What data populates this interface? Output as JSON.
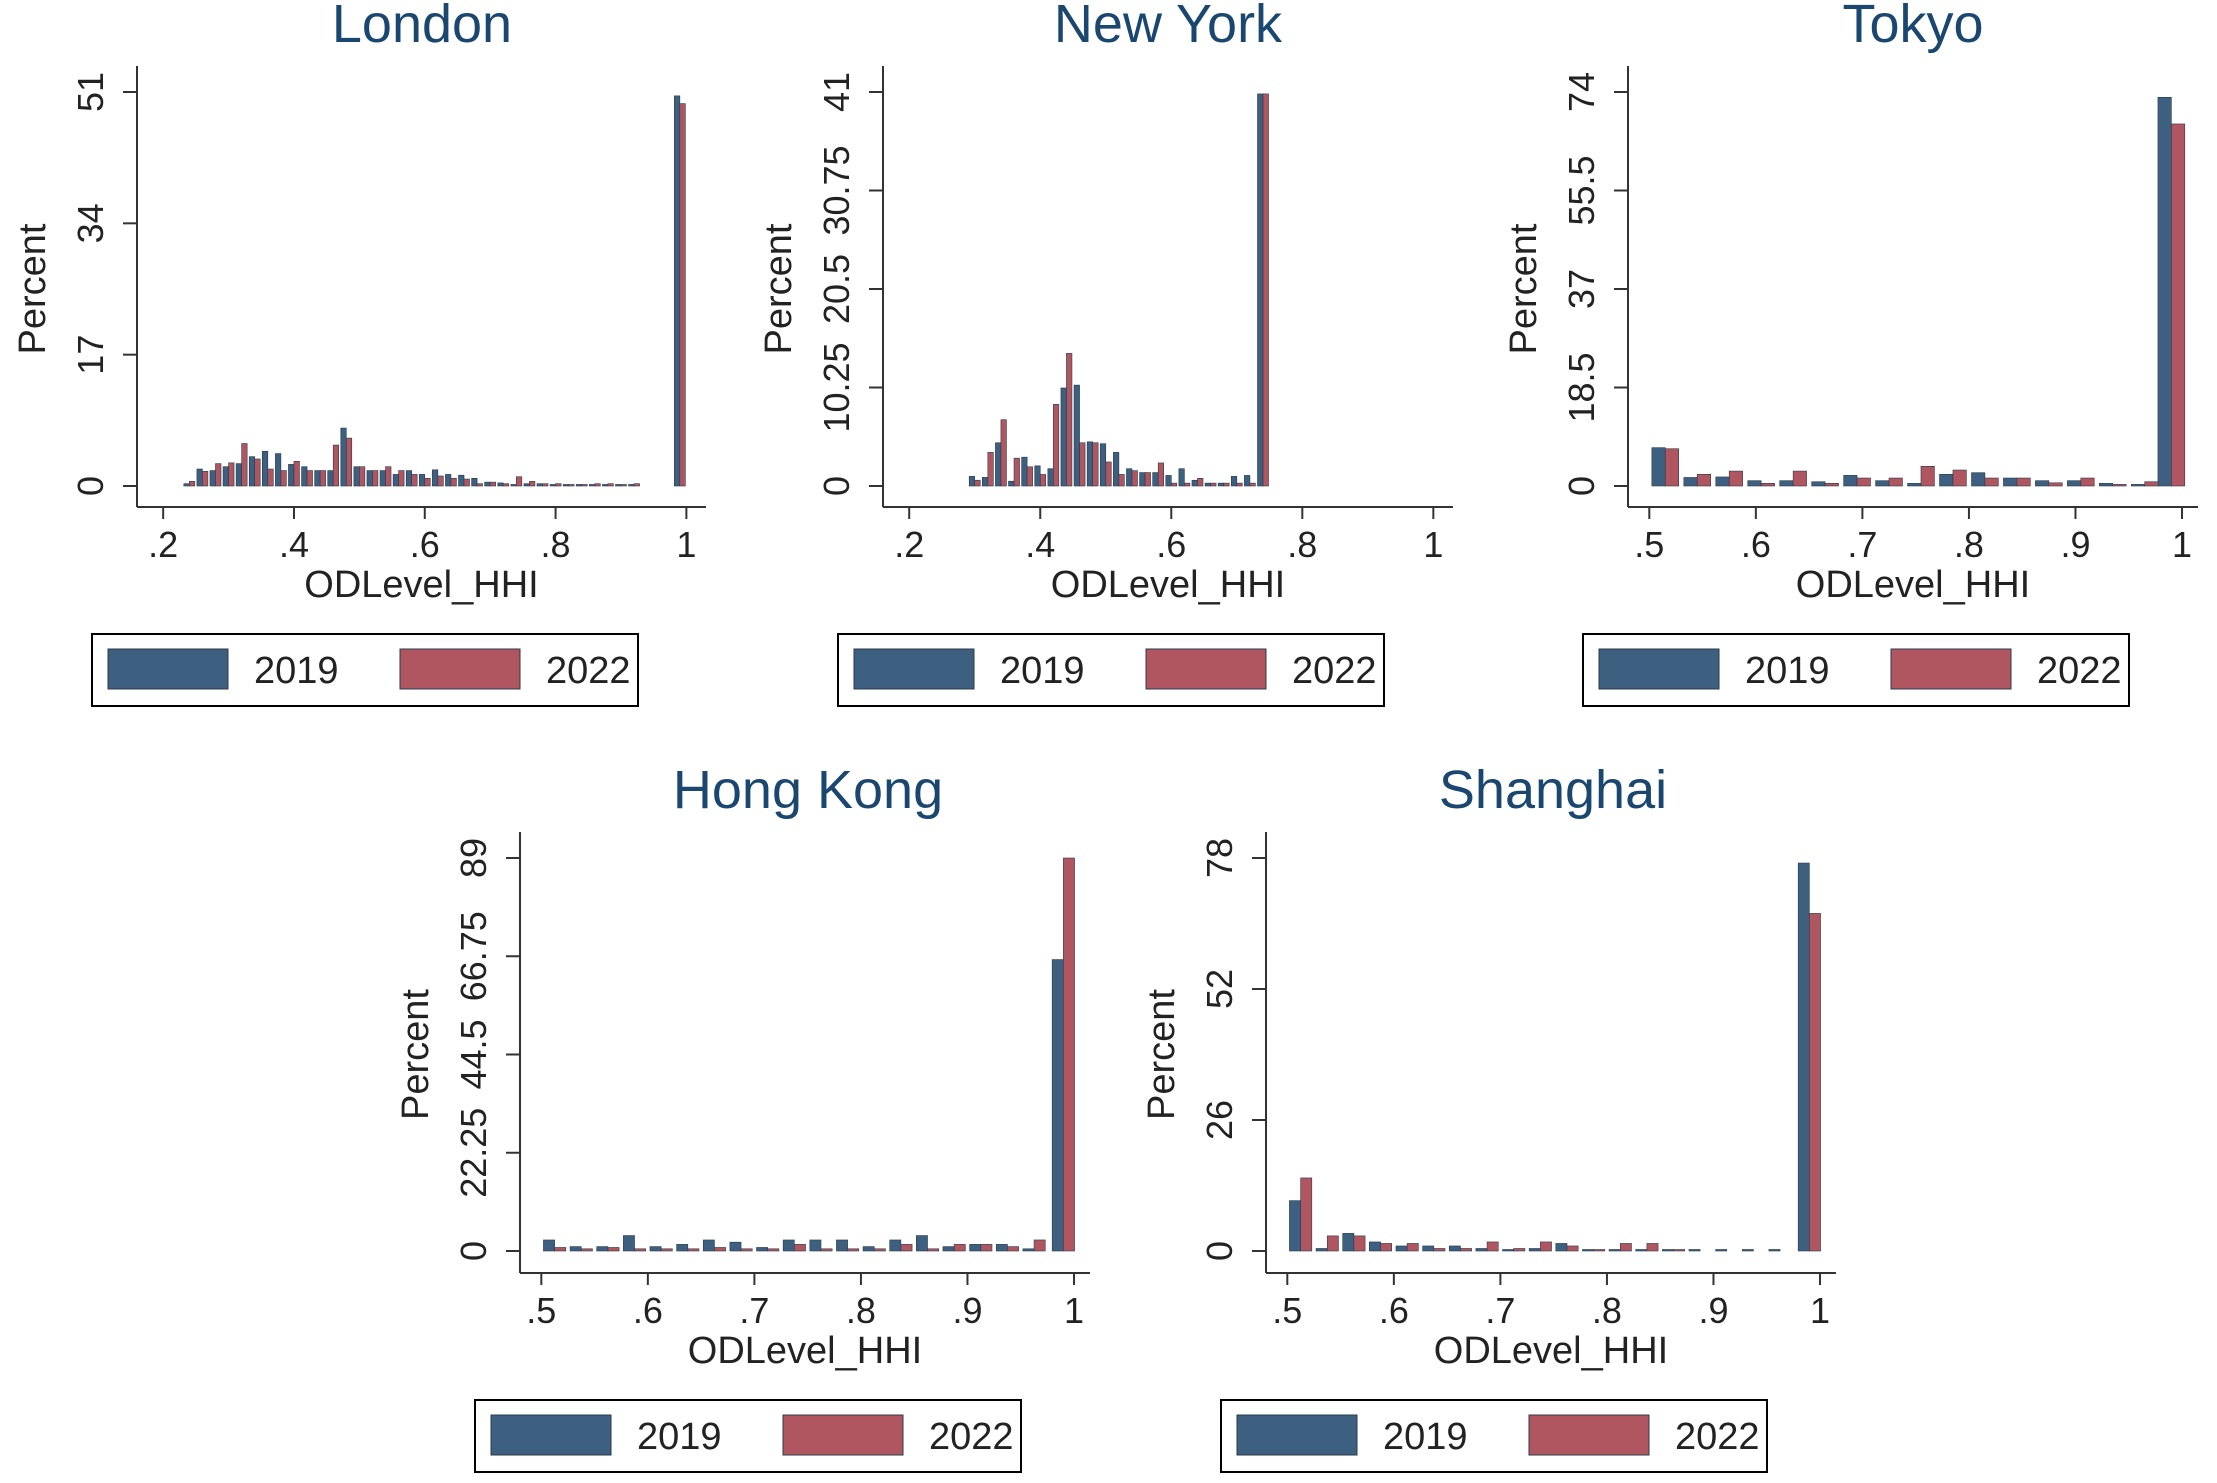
{
  "colors": {
    "s2019": "#3d5f80",
    "s2022": "#b05660",
    "title": "#1a476f",
    "axis": "#333333"
  },
  "chart_data": [
    {
      "type": "bar",
      "title": "London",
      "xlabel": "ODLevel_HHI",
      "ylabel": "Percent",
      "xticks": [
        0.2,
        0.4,
        0.6,
        0.8,
        1
      ],
      "xtick_labels": [
        ".2",
        ".4",
        ".6",
        ".8",
        "1"
      ],
      "xlim": [
        0.16,
        1.03
      ],
      "yticks": [
        0,
        17,
        34,
        51
      ],
      "ytick_labels": [
        "0",
        "17",
        "34",
        "51"
      ],
      "ylim": [
        0,
        51
      ],
      "legend": [
        "2019",
        "2022"
      ],
      "legend_position": "bottom",
      "bin_width": 0.02,
      "series": [
        {
          "name": "2019",
          "x": [
            0.24,
            0.26,
            0.28,
            0.3,
            0.32,
            0.34,
            0.36,
            0.38,
            0.4,
            0.42,
            0.44,
            0.46,
            0.48,
            0.5,
            0.52,
            0.54,
            0.56,
            0.58,
            0.6,
            0.62,
            0.64,
            0.66,
            0.68,
            0.7,
            0.72,
            0.74,
            0.76,
            0.78,
            0.8,
            0.82,
            0.84,
            0.86,
            0.88,
            0.9,
            0.92,
            0.99
          ],
          "values": [
            0.3,
            2.2,
            2.0,
            2.5,
            2.9,
            3.8,
            4.5,
            4.2,
            2.8,
            2.5,
            2.0,
            2.0,
            7.5,
            2.5,
            2.0,
            2.0,
            1.5,
            2.0,
            1.5,
            2.1,
            1.5,
            1.4,
            1.0,
            0.5,
            0.4,
            0.2,
            0.3,
            0.3,
            0.2,
            0.2,
            0.2,
            0.2,
            0.2,
            0.2,
            0.2,
            50.5
          ]
        },
        {
          "name": "2022",
          "x": [
            0.24,
            0.26,
            0.28,
            0.3,
            0.32,
            0.34,
            0.36,
            0.38,
            0.4,
            0.42,
            0.44,
            0.46,
            0.48,
            0.5,
            0.52,
            0.54,
            0.56,
            0.58,
            0.6,
            0.62,
            0.64,
            0.66,
            0.68,
            0.7,
            0.72,
            0.74,
            0.76,
            0.78,
            0.8,
            0.82,
            0.84,
            0.86,
            0.88,
            0.9,
            0.92,
            0.99
          ],
          "values": [
            0.6,
            1.9,
            2.9,
            3.0,
            5.5,
            3.5,
            2.2,
            2.0,
            3.2,
            2.0,
            2.0,
            5.3,
            6.2,
            2.5,
            2.0,
            2.5,
            2.0,
            1.5,
            1.0,
            1.3,
            1.0,
            0.9,
            0.3,
            0.5,
            0.3,
            1.2,
            0.6,
            0.3,
            0.3,
            0.2,
            0.2,
            0.3,
            0.3,
            0.2,
            0.3,
            49.5
          ]
        }
      ]
    },
    {
      "type": "bar",
      "title": "New York",
      "xlabel": "ODLevel_HHI",
      "ylabel": "Percent",
      "xticks": [
        0.2,
        0.4,
        0.6,
        0.8,
        1
      ],
      "xtick_labels": [
        ".2",
        ".4",
        ".6",
        ".8",
        "1"
      ],
      "xlim": [
        0.16,
        1.03
      ],
      "yticks": [
        0,
        10.25,
        20.5,
        30.75,
        41
      ],
      "ytick_labels": [
        "0",
        "10.25",
        "20.5",
        "30.75",
        "41"
      ],
      "ylim": [
        0,
        41
      ],
      "legend": [
        "2019",
        "2022"
      ],
      "legend_position": "bottom",
      "bin_width": 0.02,
      "series": [
        {
          "name": "2019",
          "x": [
            0.3,
            0.32,
            0.34,
            0.36,
            0.38,
            0.4,
            0.42,
            0.44,
            0.46,
            0.48,
            0.5,
            0.52,
            0.54,
            0.56,
            0.58,
            0.6,
            0.62,
            0.64,
            0.66,
            0.68,
            0.7,
            0.72,
            0.74,
            0.76,
            0.78,
            0.8,
            0.82,
            0.84,
            0.86,
            0.88,
            0.9,
            0.92,
            0.99
          ],
          "values": [
            1.0,
            0.9,
            4.5,
            0.5,
            3.0,
            2.1,
            1.8,
            10.2,
            10.5,
            4.6,
            4.4,
            3.5,
            1.8,
            1.4,
            1.4,
            1.1,
            1.8,
            0.6,
            0.3,
            0.3,
            1.0,
            1.1,
            40.8,
            0,
            0,
            0,
            0,
            0,
            0,
            0,
            0,
            0,
            0
          ]
        },
        {
          "name": "2022",
          "x": [
            0.3,
            0.32,
            0.34,
            0.36,
            0.38,
            0.4,
            0.42,
            0.44,
            0.46,
            0.48,
            0.5,
            0.52,
            0.54,
            0.56,
            0.58,
            0.6,
            0.62,
            0.64,
            0.66,
            0.68,
            0.7,
            0.72,
            0.74,
            0.76,
            0.78,
            0.8,
            0.82,
            0.84,
            0.86,
            0.88,
            0.9,
            0.92,
            0.99
          ],
          "values": [
            0.6,
            3.5,
            6.9,
            2.9,
            2.0,
            1.2,
            8.5,
            13.8,
            4.5,
            4.5,
            2.5,
            1.2,
            1.6,
            1.4,
            2.4,
            0.3,
            0.3,
            0.8,
            0.3,
            0.3,
            0.3,
            0.3,
            40.8,
            0,
            0,
            0,
            0,
            0,
            0,
            0,
            0,
            0,
            0
          ]
        }
      ]
    },
    {
      "type": "bar",
      "title": "Tokyo",
      "xlabel": "ODLevel_HHI",
      "ylabel": "Percent",
      "xticks": [
        0.5,
        0.6,
        0.7,
        0.8,
        0.9,
        1
      ],
      "xtick_labels": [
        ".5",
        ".6",
        ".7",
        ".8",
        ".9",
        "1"
      ],
      "xlim": [
        0.48,
        1.015
      ],
      "yticks": [
        0,
        18.5,
        37,
        55.5,
        74
      ],
      "ytick_labels": [
        "0",
        "18.5",
        "37",
        "55.5",
        "74"
      ],
      "ylim": [
        0,
        74
      ],
      "legend": [
        "2019",
        "2022"
      ],
      "legend_position": "bottom",
      "bin_width": 0.03,
      "series": [
        {
          "name": "2019",
          "x": [
            0.515,
            0.545,
            0.575,
            0.605,
            0.635,
            0.665,
            0.695,
            0.725,
            0.755,
            0.785,
            0.815,
            0.845,
            0.875,
            0.905,
            0.935,
            0.965,
            0.99
          ],
          "values": [
            7.2,
            1.6,
            1.7,
            1.0,
            1.0,
            0.8,
            2.0,
            1.0,
            0.5,
            2.2,
            2.5,
            1.5,
            1.0,
            1.0,
            0.5,
            0.3,
            73.0
          ]
        },
        {
          "name": "2022",
          "x": [
            0.515,
            0.545,
            0.575,
            0.605,
            0.635,
            0.665,
            0.695,
            0.725,
            0.755,
            0.785,
            0.815,
            0.845,
            0.875,
            0.905,
            0.935,
            0.965,
            0.99
          ],
          "values": [
            7.0,
            2.2,
            2.8,
            0.5,
            2.8,
            0.5,
            1.5,
            1.5,
            3.7,
            3.0,
            1.5,
            1.5,
            0.6,
            1.5,
            0.3,
            0.8,
            68.0
          ]
        }
      ]
    },
    {
      "type": "bar",
      "title": "Hong Kong",
      "xlabel": "ODLevel_HHI",
      "ylabel": "Percent",
      "xticks": [
        0.5,
        0.6,
        0.7,
        0.8,
        0.9,
        1
      ],
      "xtick_labels": [
        ".5",
        ".6",
        ".7",
        ".8",
        ".9",
        "1"
      ],
      "xlim": [
        0.48,
        1.015
      ],
      "yticks": [
        0,
        22.25,
        44.5,
        66.75,
        89
      ],
      "ytick_labels": [
        "0",
        "22.25",
        "44.5",
        "66.75",
        "89"
      ],
      "ylim": [
        0,
        89
      ],
      "legend": [
        "2019",
        "2022"
      ],
      "legend_position": "bottom",
      "bin_width": 0.025,
      "series": [
        {
          "name": "2019",
          "x": [
            0.5125,
            0.5375,
            0.5625,
            0.5875,
            0.6125,
            0.6375,
            0.6625,
            0.6875,
            0.7125,
            0.7375,
            0.7625,
            0.7875,
            0.8125,
            0.8375,
            0.8625,
            0.8875,
            0.9125,
            0.9375,
            0.9625,
            0.99
          ],
          "values": [
            2.5,
            1.0,
            1.0,
            3.5,
            1.0,
            1.5,
            2.5,
            2.0,
            0.8,
            2.5,
            2.5,
            2.5,
            1.0,
            2.5,
            3.5,
            1.0,
            1.5,
            1.5,
            0.5,
            66.0
          ]
        },
        {
          "name": "2022",
          "x": [
            0.5125,
            0.5375,
            0.5625,
            0.5875,
            0.6125,
            0.6375,
            0.6625,
            0.6875,
            0.7125,
            0.7375,
            0.7625,
            0.7875,
            0.8125,
            0.8375,
            0.8625,
            0.8875,
            0.9125,
            0.9375,
            0.9625,
            0.99
          ],
          "values": [
            0.8,
            0.5,
            0.8,
            0.5,
            0.5,
            0.5,
            0.8,
            0.5,
            0.5,
            1.5,
            0.5,
            0.5,
            0.5,
            1.5,
            0.5,
            1.5,
            1.5,
            1.0,
            2.5,
            89.0
          ]
        }
      ]
    },
    {
      "type": "bar",
      "title": "Shanghai",
      "xlabel": "ODLevel_HHI",
      "ylabel": "Percent",
      "xticks": [
        0.5,
        0.6,
        0.7,
        0.8,
        0.9,
        1
      ],
      "xtick_labels": [
        ".5",
        ".6",
        ".7",
        ".8",
        ".9",
        "1"
      ],
      "xlim": [
        0.48,
        1.015
      ],
      "yticks": [
        0,
        26,
        52,
        78
      ],
      "ytick_labels": [
        "0",
        "26",
        "52",
        "78"
      ],
      "ylim": [
        0,
        78
      ],
      "legend": [
        "2019",
        "2022"
      ],
      "legend_position": "bottom",
      "bin_width": 0.025,
      "series": [
        {
          "name": "2019",
          "x": [
            0.5125,
            0.5375,
            0.5625,
            0.5875,
            0.6125,
            0.6375,
            0.6625,
            0.6875,
            0.7125,
            0.7375,
            0.7625,
            0.7875,
            0.8125,
            0.8375,
            0.8625,
            0.8875,
            0.9125,
            0.9375,
            0.9625,
            0.99
          ],
          "values": [
            10.0,
            0.5,
            3.5,
            1.8,
            1.0,
            1.0,
            1.0,
            0.5,
            0.3,
            0.5,
            1.5,
            0.3,
            0.3,
            0.3,
            0.3,
            0.3,
            0.3,
            0.3,
            0.3,
            77.0
          ]
        },
        {
          "name": "2022",
          "x": [
            0.5125,
            0.5375,
            0.5625,
            0.5875,
            0.6125,
            0.6375,
            0.6625,
            0.6875,
            0.7125,
            0.7375,
            0.7625,
            0.7875,
            0.8125,
            0.8375,
            0.8625,
            0.8875,
            0.9125,
            0.9375,
            0.9625,
            0.99
          ],
          "values": [
            14.5,
            3.0,
            3.0,
            1.5,
            1.5,
            0.5,
            0.5,
            1.8,
            0.5,
            1.8,
            1.0,
            0.3,
            1.5,
            1.5,
            0.3,
            0,
            0,
            0,
            0,
            67.0
          ]
        }
      ]
    }
  ]
}
